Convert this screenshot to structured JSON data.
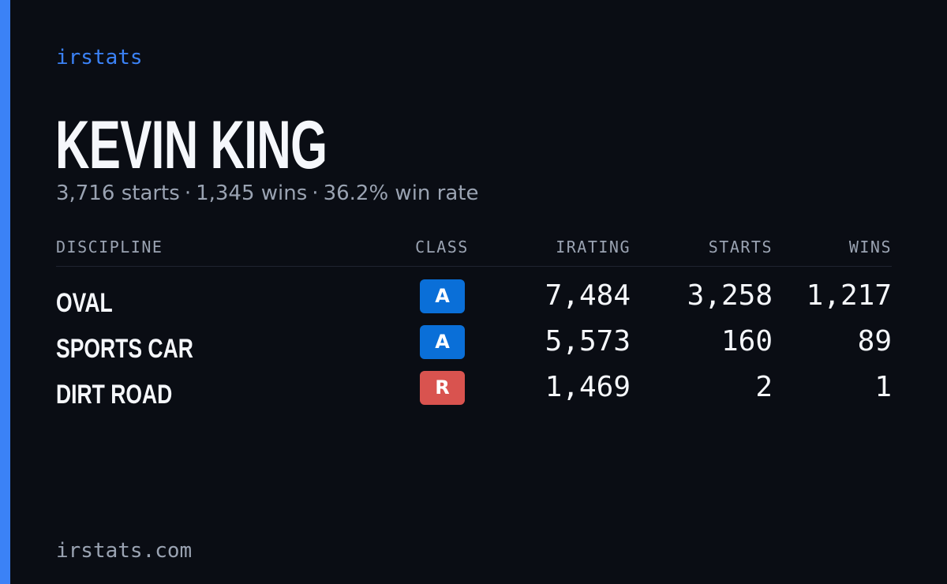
{
  "brand": "irstats",
  "driver": {
    "name": "KEVIN KING",
    "starts_text": "3,716 starts",
    "wins_text": "1,345 wins",
    "win_rate_text": "36.2% win rate",
    "separator": "·"
  },
  "table": {
    "headers": {
      "discipline": "DISCIPLINE",
      "class": "CLASS",
      "irating": "IRATING",
      "starts": "STARTS",
      "wins": "WINS"
    },
    "rows": [
      {
        "discipline": "OVAL",
        "class": "A",
        "class_color": "#0a6fd8",
        "irating": "7,484",
        "starts": "3,258",
        "wins": "1,217"
      },
      {
        "discipline": "SPORTS CAR",
        "class": "A",
        "class_color": "#0a6fd8",
        "irating": "5,573",
        "starts": "160",
        "wins": "89"
      },
      {
        "discipline": "DIRT ROAD",
        "class": "R",
        "class_color": "#d9534f",
        "irating": "1,469",
        "starts": "2",
        "wins": "1"
      }
    ]
  },
  "footer": "irstats.com",
  "colors": {
    "background": "#0a0d14",
    "accent": "#3b82f6",
    "text_primary": "#f5f7fb",
    "text_secondary": "#9aa3b2"
  }
}
